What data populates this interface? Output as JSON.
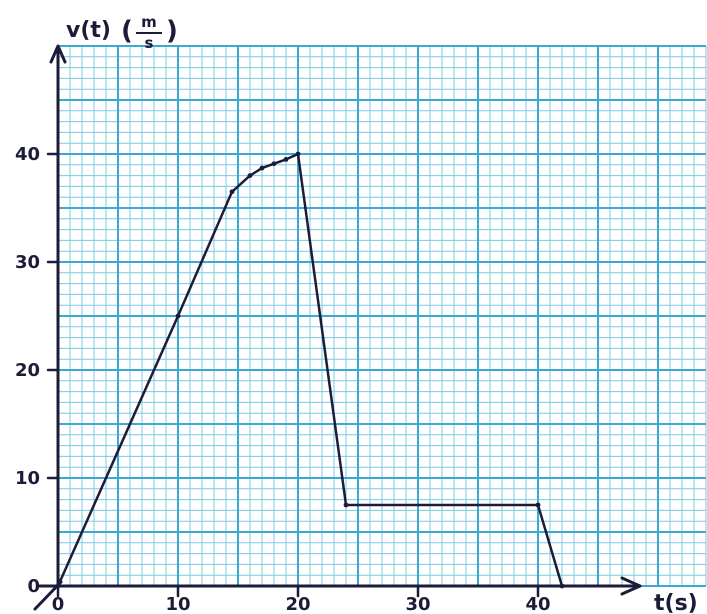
{
  "chart_data": {
    "type": "line",
    "title": "",
    "xlabel": "t(s)",
    "ylabel": "v(t)",
    "y_unit_numerator": "m",
    "y_unit_denominator": "s",
    "xlim": [
      0,
      54
    ],
    "ylim": [
      0,
      50
    ],
    "grid": true,
    "x_ticks": [
      {
        "value": 0,
        "label": "0"
      },
      {
        "value": 10,
        "label": "10"
      },
      {
        "value": 20,
        "label": "20"
      },
      {
        "value": 30,
        "label": "30"
      },
      {
        "value": 40,
        "label": "40"
      }
    ],
    "y_ticks": [
      {
        "value": 0,
        "label": "0"
      },
      {
        "value": 10,
        "label": "10"
      },
      {
        "value": 20,
        "label": "20"
      },
      {
        "value": 30,
        "label": "30"
      },
      {
        "value": 40,
        "label": "40"
      }
    ],
    "series": [
      {
        "x": [
          0,
          10,
          14.5,
          16,
          17,
          18,
          19,
          20,
          24,
          40,
          42
        ],
        "y": [
          0,
          25,
          36.5,
          38,
          38.7,
          39.1,
          39.5,
          40,
          7.5,
          7.5,
          0
        ]
      }
    ]
  },
  "colors": {
    "grid_minor": "#7cc9e2",
    "grid_major": "#3aa9d3",
    "ink": "#1c1c38"
  }
}
